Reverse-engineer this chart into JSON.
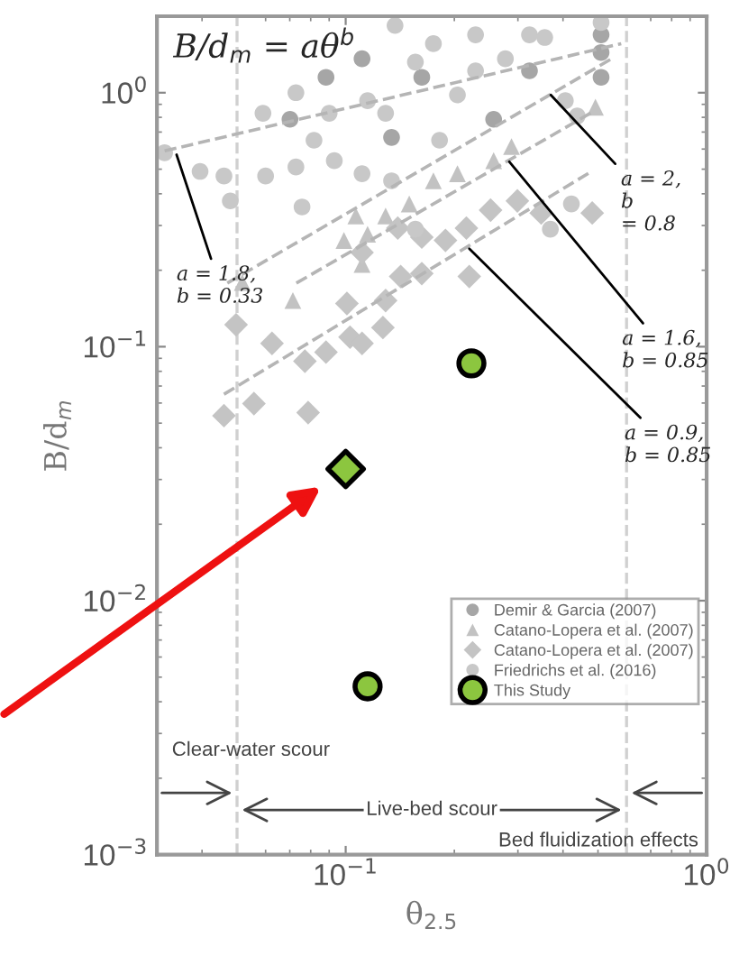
{
  "chart_data": {
    "type": "scatter",
    "xlabel": "θ$_{2.5}$",
    "ylabel": "B/d$_{m}$",
    "log": "xy",
    "xlim": [
      0.03,
      1
    ],
    "ylim": [
      0.001,
      2
    ],
    "xticks": [
      {
        "value": 0.1,
        "label": "10$^{−1}$"
      },
      {
        "value": 1,
        "label": "10$^{0}$"
      }
    ],
    "yticks": [
      {
        "value": 0.001,
        "label": "10$^{−3}$"
      },
      {
        "value": 0.01,
        "label": "10$^{−2}$"
      },
      {
        "value": 0.1,
        "label": "10$^{−1}$"
      },
      {
        "value": 1,
        "label": "10$^{0}$"
      }
    ],
    "grid": false,
    "legend": "bottom right",
    "series": [
      {
        "name": "Demir & Garcia (2007)",
        "type": "scatter",
        "marker": "circle",
        "color": "#a6a6a6",
        "x": [
          0.51,
          0.51,
          0.51,
          0.323,
          0.111,
          0.0701,
          0.1625,
          0.257,
          0.0882,
          0.134
        ],
        "values": [
          1.69,
          1.44,
          1.15,
          1.22,
          1.36,
          0.786,
          1.15,
          0.786,
          1.15,
          0.667
        ]
      },
      {
        "name": "Catano-Lopera et al. (2007)",
        "type": "scatter",
        "marker": "triangle",
        "color": "#c2c2c2",
        "x": [
          0.0714,
          0.0989,
          0.1067,
          0.15,
          0.175,
          0.204,
          0.257,
          0.288,
          0.492,
          0.111,
          0.115,
          0.0517,
          0.129
        ],
        "values": [
          0.152,
          0.262,
          0.327,
          0.365,
          0.45,
          0.48,
          0.54,
          0.614,
          0.877,
          0.211,
          0.277,
          0.179,
          0.327
        ]
      },
      {
        "name": "Catano-Lopera et al. (2007)",
        "type": "scatter",
        "marker": "diamond",
        "color": "#c4c4c4",
        "x": [
          0.046,
          0.0557,
          0.0787,
          0.0497,
          0.0625,
          0.0771,
          0.0882,
          0.1008,
          0.1028,
          0.111,
          0.1268,
          0.129,
          0.111,
          0.142,
          0.1625,
          0.189,
          0.216,
          0.22,
          0.252,
          0.299,
          0.348,
          0.482,
          0.1625,
          0.1394
        ],
        "values": [
          0.0535,
          0.0597,
          0.055,
          0.122,
          0.103,
          0.0877,
          0.0952,
          0.148,
          0.109,
          0.103,
          0.119,
          0.152,
          0.235,
          0.189,
          0.194,
          0.262,
          0.293,
          0.189,
          0.345,
          0.375,
          0.336,
          0.336,
          0.27,
          0.293
        ]
      },
      {
        "name": "Friedrichs et al. (2016)",
        "type": "scatter",
        "marker": "circle",
        "color": "#c8c8c8",
        "x": [
          0.0315,
          0.0395,
          0.046,
          0.0479,
          0.059,
          0.06,
          0.0728,
          0.0728,
          0.0817,
          0.093,
          0.111,
          0.137,
          0.129,
          0.156,
          0.175,
          0.229,
          0.229,
          0.277,
          0.323,
          0.356,
          0.406,
          0.438,
          0.204,
          0.182,
          0.115,
          0.09,
          0.0757,
          0.134,
          0.156,
          0.369,
          0.422,
          0.51
        ],
        "values": [
          0.58,
          0.49,
          0.47,
          0.375,
          0.83,
          0.47,
          1.0,
          0.51,
          0.65,
          0.54,
          0.48,
          1.84,
          0.83,
          1.32,
          1.56,
          1.69,
          1.22,
          1.36,
          1.69,
          1.65,
          0.93,
          0.81,
          0.98,
          0.65,
          0.93,
          0.83,
          0.355,
          0.45,
          0.29,
          0.29,
          0.365,
          1.89
        ]
      },
      {
        "type": "line",
        "line_style": "dashed",
        "marker": "none",
        "color": "#b5b5b5",
        "x": [
          0.0315,
          0.58
        ],
        "values": [
          0.59,
          1.56
        ]
      },
      {
        "type": "line",
        "line_style": "dashed",
        "marker": "none",
        "color": "#b5b5b5",
        "x": [
          0.047,
          0.55
        ],
        "values": [
          0.178,
          1.37
        ]
      },
      {
        "type": "line",
        "line_style": "dashed",
        "marker": "none",
        "color": "#b5b5b5",
        "x": [
          0.073,
          0.49
        ],
        "values": [
          0.178,
          0.85
        ]
      },
      {
        "type": "line",
        "line_style": "dashed",
        "marker": "none",
        "color": "#b5b5b5",
        "x": [
          0.046,
          0.48
        ],
        "values": [
          0.065,
          0.49
        ]
      },
      {
        "name": "This Study",
        "type": "scatter",
        "marker": "circle",
        "color": "#8cc63f",
        "x": [
          0.223,
          0.115
        ],
        "values": [
          0.086,
          0.0046
        ]
      },
      {
        "type": "scatter",
        "marker": "diamond",
        "color": "#8cc63f",
        "x": [
          0.1
        ],
        "values": [
          0.033
        ]
      }
    ],
    "ref_lines": [
      {
        "axis": "x",
        "value": 0.05,
        "color": "#d0d0d0",
        "line_style": "dashed"
      },
      {
        "axis": "x",
        "value": 0.6,
        "color": "#d0d0d0",
        "line_style": "dashed"
      }
    ],
    "annotations": [
      "B/d$_{m}$ = aθ$^{b}$",
      {
        "text": "a = 1.8,\nb = 0.33",
        "x": 0.034,
        "y": 0.57
      },
      {
        "text": "a = 2,\nb\n= 0.8",
        "x": 0.37,
        "y": 0.98
      },
      {
        "text": "a = 1.6,\nb = 0.85",
        "x": 0.284,
        "y": 0.535
      },
      {
        "text": "a = 0.9,\nb = 0.85",
        "x": 0.22,
        "y": 0.243
      },
      "Clear-water scour",
      "Live-bed scour",
      "Bed fluidization effects"
    ]
  }
}
